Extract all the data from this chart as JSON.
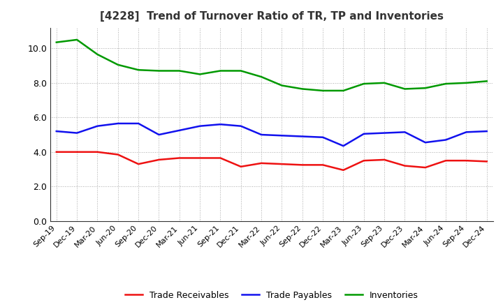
{
  "title": "[4228]  Trend of Turnover Ratio of TR, TP and Inventories",
  "x_labels": [
    "Sep-19",
    "Dec-19",
    "Mar-20",
    "Jun-20",
    "Sep-20",
    "Dec-20",
    "Mar-21",
    "Jun-21",
    "Sep-21",
    "Dec-21",
    "Mar-22",
    "Jun-22",
    "Sep-22",
    "Dec-22",
    "Mar-23",
    "Jun-23",
    "Sep-23",
    "Dec-23",
    "Mar-24",
    "Jun-24",
    "Sep-24",
    "Dec-24"
  ],
  "trade_receivables": [
    4.0,
    4.0,
    4.0,
    3.85,
    3.3,
    3.55,
    3.65,
    3.65,
    3.65,
    3.15,
    3.35,
    3.3,
    3.25,
    3.25,
    2.95,
    3.5,
    3.55,
    3.2,
    3.1,
    3.5,
    3.5,
    3.45
  ],
  "trade_payables": [
    5.2,
    5.1,
    5.5,
    5.65,
    5.65,
    5.0,
    5.25,
    5.5,
    5.6,
    5.5,
    5.0,
    4.95,
    4.9,
    4.85,
    4.35,
    5.05,
    5.1,
    5.15,
    4.55,
    4.7,
    5.15,
    5.2
  ],
  "inventories": [
    10.35,
    10.5,
    9.65,
    9.05,
    8.75,
    8.7,
    8.7,
    8.5,
    8.7,
    8.7,
    8.35,
    7.85,
    7.65,
    7.55,
    7.55,
    7.95,
    8.0,
    7.65,
    7.7,
    7.95,
    8.0,
    8.1
  ],
  "tr_color": "#ee1111",
  "tp_color": "#1111ee",
  "inv_color": "#009900",
  "ylim": [
    0.0,
    11.2
  ],
  "yticks": [
    0.0,
    2.0,
    4.0,
    6.0,
    8.0,
    10.0
  ],
  "background_color": "#ffffff",
  "grid_color": "#aaaaaa",
  "legend_labels": [
    "Trade Receivables",
    "Trade Payables",
    "Inventories"
  ],
  "title_fontsize": 11,
  "tick_fontsize": 8,
  "legend_fontsize": 9
}
